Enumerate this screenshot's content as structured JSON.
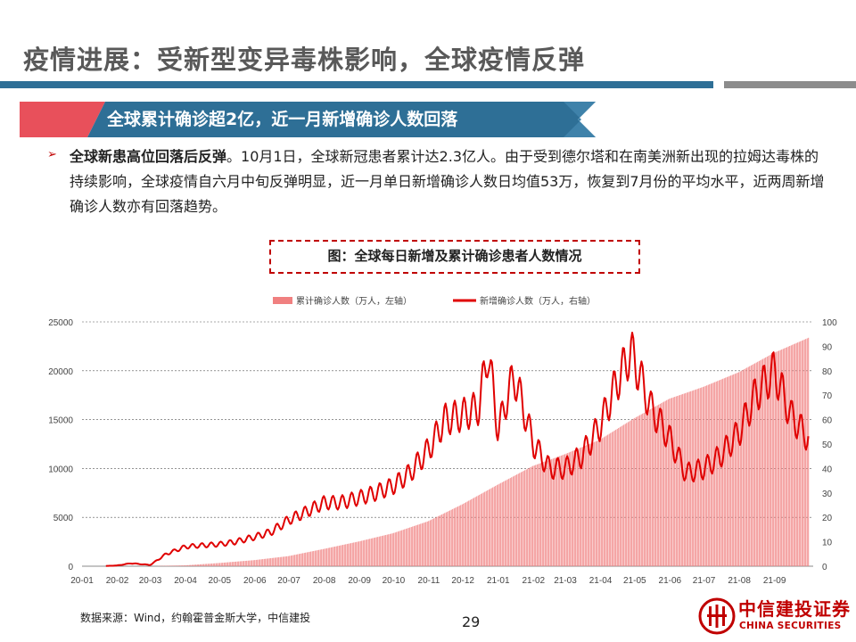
{
  "slide": {
    "title": "疫情进展：受新型变异毒株影响，全球疫情反弹",
    "banner": "全球累计确诊超2亿，近一月新增确诊人数回落",
    "bullet_lead": "全球新患高位回落后反弹",
    "bullet_body": "。10月1日，全球新冠患者累计达2.3亿人。由于受到德尔塔和在南美洲新出现的拉姆达毒株的持续影响，全球疫情自六月中旬反弹明显，近一月单日新增确诊人数日均值53万，恢复到7月份的平均水平，近两周新增确诊人数亦有回落趋势。",
    "figure_caption": "图：全球每日新增及累计确诊患者人数情况",
    "source": "数据来源：Wind，约翰霍普金斯大学，中信建投",
    "page_number": "29",
    "logo_cn": "中信建投证券",
    "logo_en": "CHINA SECURITIES"
  },
  "colors": {
    "title_bar": "#2e6f96",
    "banner_dark": "#2e6f96",
    "banner_accent": "#e8505b",
    "bar_series": "#f08080",
    "line_series": "#e00000",
    "brand_red": "#c00000"
  },
  "chart_data": {
    "type": "bar+line",
    "title": "",
    "xlabel": "",
    "ylabel_left": "",
    "ylabel_right": "",
    "ylim_left": [
      0,
      25000
    ],
    "ylim_right": [
      0,
      100
    ],
    "left_ticks": [
      "0",
      "5000",
      "10000",
      "15000",
      "20000",
      "25000"
    ],
    "right_ticks": [
      "0",
      "10",
      "20",
      "30",
      "40",
      "50",
      "60",
      "70",
      "80",
      "90",
      "100"
    ],
    "x_ticks": [
      "20-01",
      "20-02",
      "20-03",
      "20-04",
      "20-05",
      "20-06",
      "20-07",
      "20-08",
      "20-09",
      "20-10",
      "20-11",
      "20-12",
      "21-01",
      "21-02",
      "21-03",
      "21-04",
      "21-05",
      "21-06",
      "21-07",
      "21-08",
      "21-09"
    ],
    "grid": "horizontal dashed",
    "legend_position": "top",
    "series": [
      {
        "name": "累计确诊人数（万人，左轴）",
        "kind": "bar",
        "axis": "left",
        "unit": "万人",
        "x": [
          "2020-01-31",
          "2020-02-29",
          "2020-03-31",
          "2020-04-30",
          "2020-05-31",
          "2020-06-30",
          "2020-07-31",
          "2020-08-31",
          "2020-09-30",
          "2020-10-31",
          "2020-11-30",
          "2020-12-31",
          "2021-01-31",
          "2021-02-28",
          "2021-03-31",
          "2021-04-30",
          "2021-05-31",
          "2021-06-30",
          "2021-07-31",
          "2021-08-31",
          "2021-10-01"
        ],
        "values": [
          1,
          9,
          86,
          325,
          620,
          1030,
          1760,
          2530,
          3370,
          4600,
          6330,
          8330,
          10250,
          11450,
          12940,
          15120,
          17130,
          18350,
          19840,
          21820,
          23400
        ]
      },
      {
        "name": "新增确诊人数（万人，右轴）",
        "kind": "line",
        "axis": "right",
        "unit": "万人",
        "x": [
          "2020-01-22",
          "2020-02-01",
          "2020-02-13",
          "2020-03-01",
          "2020-03-15",
          "2020-04-01",
          "2020-04-15",
          "2020-05-01",
          "2020-05-15",
          "2020-06-01",
          "2020-06-15",
          "2020-07-01",
          "2020-07-15",
          "2020-08-01",
          "2020-08-15",
          "2020-09-01",
          "2020-09-15",
          "2020-10-01",
          "2020-10-15",
          "2020-11-01",
          "2020-11-15",
          "2020-12-01",
          "2020-12-15",
          "2020-12-23",
          "2021-01-01",
          "2021-01-08",
          "2021-01-15",
          "2021-02-01",
          "2021-02-15",
          "2021-03-01",
          "2021-03-15",
          "2021-04-01",
          "2021-04-15",
          "2021-04-28",
          "2021-05-15",
          "2021-06-01",
          "2021-06-15",
          "2021-07-01",
          "2021-07-15",
          "2021-08-01",
          "2021-08-15",
          "2021-09-01",
          "2021-09-15",
          "2021-10-01"
        ],
        "values": [
          0.1,
          0.3,
          1.2,
          0.5,
          5,
          8,
          8.5,
          9,
          10,
          12,
          14,
          19,
          22,
          26,
          26,
          28,
          30,
          33,
          38,
          48,
          60,
          62,
          65,
          88,
          55,
          68,
          78,
          50,
          40,
          40,
          45,
          58,
          75,
          88,
          65,
          52,
          38,
          40,
          45,
          55,
          70,
          80,
          62,
          52
        ]
      }
    ]
  }
}
